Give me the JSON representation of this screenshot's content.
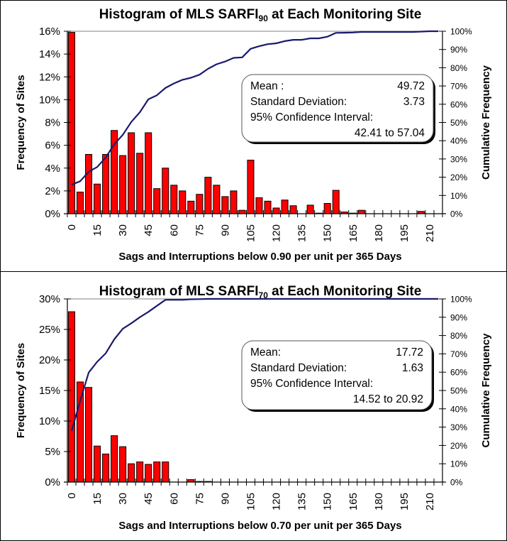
{
  "chart_data": [
    {
      "type": "bar",
      "title": "Histogram of MLS SARFI",
      "title_subscript": "90",
      "title_suffix": " at Each Monitoring Site",
      "xlabel": "Sags and Interruptions below 0.90 per unit per 365 Days",
      "ylabel": "Frequency of Sites",
      "y2label": "Cumulative Frequency",
      "ylim": [
        0,
        16
      ],
      "y_ticks": [
        "0%",
        "2%",
        "4%",
        "6%",
        "8%",
        "10%",
        "12%",
        "14%",
        "16%"
      ],
      "y_tick_values": [
        0,
        2,
        4,
        6,
        8,
        10,
        12,
        14,
        16
      ],
      "y2lim": [
        0,
        100
      ],
      "y2_ticks": [
        "0%",
        "10%",
        "20%",
        "30%",
        "40%",
        "50%",
        "60%",
        "70%",
        "80%",
        "90%",
        "100%"
      ],
      "y2_tick_values": [
        0,
        10,
        20,
        30,
        40,
        50,
        60,
        70,
        80,
        90,
        100
      ],
      "x_tick_labels": [
        "0",
        "15",
        "30",
        "45",
        "60",
        "75",
        "90",
        "105",
        "120",
        "135",
        "150",
        "165",
        "180",
        "195",
        "210"
      ],
      "categories": [
        0,
        5,
        10,
        15,
        20,
        25,
        30,
        35,
        40,
        45,
        50,
        55,
        60,
        65,
        70,
        75,
        80,
        85,
        90,
        95,
        100,
        105,
        110,
        115,
        120,
        125,
        130,
        135,
        140,
        145,
        150,
        155,
        160,
        165,
        170,
        175,
        180,
        185,
        190,
        195,
        200,
        205,
        210,
        215
      ],
      "series": [
        {
          "name": "Frequency of Sites (%)",
          "type": "bar",
          "color": "#ff0000",
          "values": [
            15.9,
            1.9,
            5.2,
            2.6,
            5.2,
            7.3,
            5.1,
            7.1,
            5.3,
            7.1,
            2.2,
            4.0,
            2.5,
            2.0,
            1.1,
            1.7,
            3.2,
            2.5,
            1.5,
            2.0,
            0.3,
            4.7,
            1.4,
            1.1,
            0.5,
            1.2,
            0.7,
            0,
            0.75,
            0.05,
            0.9,
            2.05,
            0.15,
            0.05,
            0.3,
            0,
            0,
            0,
            0,
            0,
            0,
            0.2,
            0,
            0
          ]
        },
        {
          "name": "Cumulative Frequency (%)",
          "type": "line",
          "color": "#1a1a6e",
          "values": [
            15.9,
            17.8,
            23.0,
            25.6,
            30.8,
            38.1,
            43.2,
            50.3,
            55.6,
            62.7,
            64.9,
            68.9,
            71.4,
            73.4,
            74.5,
            76.2,
            79.4,
            81.9,
            83.4,
            85.4,
            85.7,
            90.4,
            91.8,
            92.9,
            93.4,
            94.6,
            95.3,
            95.3,
            96.1,
            96.1,
            97.0,
            99.1,
            99.2,
            99.3,
            99.6,
            99.6,
            99.6,
            99.6,
            99.6,
            99.6,
            99.6,
            99.8,
            100,
            100
          ]
        }
      ],
      "stats": {
        "rows": [
          {
            "label": "Mean :",
            "value": "49.72"
          },
          {
            "label": "Standard Deviation:",
            "value": "3.73"
          },
          {
            "label": "95% Confidence Interval:",
            "value": ""
          },
          {
            "label": "",
            "value": "42.41 to 57.04"
          }
        ]
      },
      "grid": false,
      "legend": "none"
    },
    {
      "type": "bar",
      "title": "Histogram of MLS SARFI",
      "title_subscript": "70",
      "title_suffix": " at Each Monitoring Site",
      "xlabel": "Sags and Interruptions below 0.70 per unit per 365 Days",
      "ylabel": "Frequency of Sites",
      "y2label": "Cumulative Frequency",
      "ylim": [
        0,
        30
      ],
      "y_ticks": [
        "0%",
        "5%",
        "10%",
        "15%",
        "20%",
        "25%",
        "30%"
      ],
      "y_tick_values": [
        0,
        5,
        10,
        15,
        20,
        25,
        30
      ],
      "y2lim": [
        0,
        100
      ],
      "y2_ticks": [
        "0%",
        "10%",
        "20%",
        "30%",
        "40%",
        "50%",
        "60%",
        "70%",
        "80%",
        "90%",
        "100%"
      ],
      "y2_tick_values": [
        0,
        10,
        20,
        30,
        40,
        50,
        60,
        70,
        80,
        90,
        100
      ],
      "x_tick_labels": [
        "0",
        "15",
        "30",
        "45",
        "60",
        "75",
        "90",
        "105",
        "120",
        "135",
        "150",
        "165",
        "180",
        "195",
        "210"
      ],
      "categories": [
        0,
        5,
        10,
        15,
        20,
        25,
        30,
        35,
        40,
        45,
        50,
        55,
        60,
        65,
        70,
        75,
        80,
        85,
        90,
        95,
        100,
        105,
        110,
        115,
        120,
        125,
        130,
        135,
        140,
        145,
        150,
        155,
        160,
        165,
        170,
        175,
        180,
        185,
        190,
        195,
        200,
        205,
        210,
        215
      ],
      "series": [
        {
          "name": "Frequency of Sites (%)",
          "type": "bar",
          "color": "#ff0000",
          "values": [
            27.9,
            16.4,
            15.5,
            5.9,
            4.6,
            7.6,
            5.8,
            3.0,
            3.3,
            2.9,
            3.3,
            3.3,
            0,
            0,
            0.4,
            0.1,
            0.1,
            0,
            0,
            0,
            0,
            0,
            0,
            0,
            0,
            0,
            0,
            0,
            0,
            0,
            0,
            0,
            0,
            0,
            0,
            0,
            0,
            0,
            0,
            0,
            0,
            0,
            0,
            0
          ]
        },
        {
          "name": "Cumulative Frequency (%)",
          "type": "line",
          "color": "#1a1a6e",
          "values": [
            27.9,
            44.3,
            59.8,
            65.7,
            70.3,
            77.9,
            83.7,
            86.7,
            90.0,
            92.9,
            96.2,
            99.5,
            99.5,
            99.5,
            99.8,
            99.9,
            100,
            100,
            100,
            100,
            100,
            100,
            100,
            100,
            100,
            100,
            100,
            100,
            100,
            100,
            100,
            100,
            100,
            100,
            100,
            100,
            100,
            100,
            100,
            100,
            100,
            100,
            100,
            100
          ]
        }
      ],
      "stats": {
        "rows": [
          {
            "label": "Mean:",
            "value": "17.72"
          },
          {
            "label": "Standard Deviation:",
            "value": "1.63"
          },
          {
            "label": "95% Confidence Interval:",
            "value": ""
          },
          {
            "label": "",
            "value": "14.52 to 20.92"
          }
        ]
      },
      "grid": false,
      "legend": "none"
    }
  ]
}
